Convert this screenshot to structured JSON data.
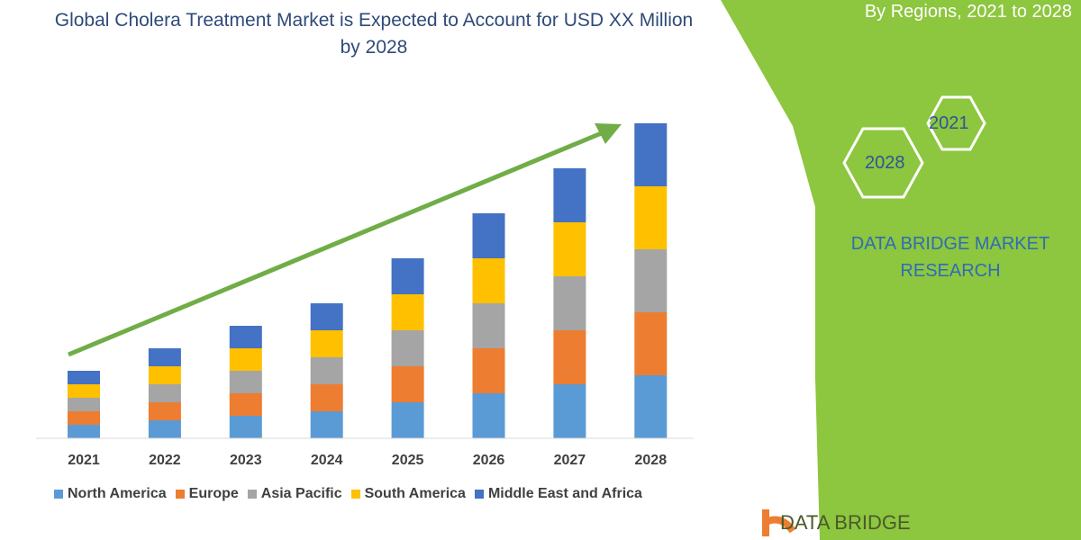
{
  "chart_data": {
    "type": "bar",
    "stacked": true,
    "title": "Global Cholera Treatment Market is Expected to Account for USD XX Million by 2028",
    "categories": [
      "2021",
      "2022",
      "2023",
      "2024",
      "2025",
      "2026",
      "2027",
      "2028"
    ],
    "series": [
      {
        "name": "North America",
        "color": "#5b9bd5",
        "values": [
          3,
          4,
          5,
          6,
          8,
          10,
          12,
          14
        ]
      },
      {
        "name": "Europe",
        "color": "#ed7d31",
        "values": [
          3,
          4,
          5,
          6,
          8,
          10,
          12,
          14
        ]
      },
      {
        "name": "Asia Pacific",
        "color": "#a5a5a5",
        "values": [
          3,
          4,
          5,
          6,
          8,
          10,
          12,
          14
        ]
      },
      {
        "name": "South America",
        "color": "#ffc000",
        "values": [
          3,
          4,
          5,
          6,
          8,
          10,
          12,
          14
        ]
      },
      {
        "name": "Middle East and Africa",
        "color": "#4472c4",
        "values": [
          3,
          4,
          5,
          6,
          8,
          10,
          12,
          14
        ]
      }
    ],
    "xlabel": "",
    "ylabel": "",
    "ylim": [
      0,
      72
    ],
    "grid": false,
    "legend": "bottom",
    "trend_arrow": true
  },
  "side_panel": {
    "subtitle": "By Regions, 2021 to 2028",
    "hex_labels": [
      "2021",
      "2028"
    ],
    "brand": "DATA BRIDGE MARKET RESEARCH",
    "footer_logo_text": "DATA BRIDGE",
    "accent_color": "#8dc63f"
  }
}
